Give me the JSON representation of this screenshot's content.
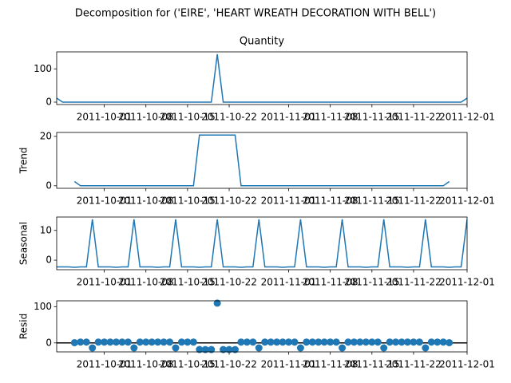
{
  "chart_data": {
    "title": "Decomposition for ('EIRE', 'HEART WREATH DECORATION WITH BELL')",
    "x": [
      "2011-09-23",
      "2011-09-24",
      "2011-09-25",
      "2011-09-26",
      "2011-09-27",
      "2011-09-28",
      "2011-09-29",
      "2011-09-30",
      "2011-10-01",
      "2011-10-02",
      "2011-10-03",
      "2011-10-04",
      "2011-10-05",
      "2011-10-06",
      "2011-10-07",
      "2011-10-08",
      "2011-10-09",
      "2011-10-10",
      "2011-10-11",
      "2011-10-12",
      "2011-10-13",
      "2011-10-14",
      "2011-10-15",
      "2011-10-16",
      "2011-10-17",
      "2011-10-18",
      "2011-10-19",
      "2011-10-20",
      "2011-10-21",
      "2011-10-22",
      "2011-10-23",
      "2011-10-24",
      "2011-10-25",
      "2011-10-26",
      "2011-10-27",
      "2011-10-28",
      "2011-10-29",
      "2011-10-30",
      "2011-10-31",
      "2011-11-01",
      "2011-11-02",
      "2011-11-03",
      "2011-11-04",
      "2011-11-05",
      "2011-11-06",
      "2011-11-07",
      "2011-11-08",
      "2011-11-09",
      "2011-11-10",
      "2011-11-11",
      "2011-11-12",
      "2011-11-13",
      "2011-11-14",
      "2011-11-15",
      "2011-11-16",
      "2011-11-17",
      "2011-11-18",
      "2011-11-19",
      "2011-11-20",
      "2011-11-21",
      "2011-11-22",
      "2011-11-23",
      "2011-11-24",
      "2011-11-25",
      "2011-11-26",
      "2011-11-27",
      "2011-11-28",
      "2011-11-29",
      "2011-11-30",
      "2011-12-01"
    ],
    "xlim": [
      "2011-09-23",
      "2011-12-01"
    ],
    "xticks": [
      "2011-10-01",
      "2011-10-08",
      "2011-10-15",
      "2011-10-22",
      "2011-11-01",
      "2011-11-08",
      "2011-11-15",
      "2011-11-22",
      "2011-12-01"
    ],
    "color": "#1f77b4",
    "panels": [
      {
        "type": "line",
        "title": "Quantity",
        "ylim": [
          -7.2,
          151.2
        ],
        "yticks": [
          0,
          100
        ],
        "values": [
          12,
          0,
          0,
          0,
          0,
          0,
          0,
          0,
          0,
          0,
          0,
          0,
          0,
          0,
          0,
          0,
          0,
          0,
          0,
          0,
          0,
          0,
          0,
          0,
          0,
          0,
          0,
          144,
          0,
          0,
          0,
          0,
          0,
          0,
          0,
          0,
          0,
          0,
          0,
          0,
          0,
          0,
          0,
          0,
          0,
          0,
          0,
          0,
          0,
          0,
          0,
          0,
          0,
          0,
          0,
          0,
          0,
          0,
          0,
          0,
          0,
          0,
          0,
          0,
          0,
          0,
          0,
          0,
          0,
          12
        ]
      },
      {
        "type": "line",
        "ylabel": "Trend",
        "ylim": [
          -1.03,
          21.6
        ],
        "yticks": [
          0,
          20
        ],
        "values": [
          null,
          null,
          null,
          1.71,
          0,
          0,
          0,
          0,
          0,
          0,
          0,
          0,
          0,
          0,
          0,
          0,
          0,
          0,
          0,
          0,
          0,
          0,
          0,
          0,
          20.57,
          20.57,
          20.57,
          20.57,
          20.57,
          20.57,
          20.57,
          0,
          0,
          0,
          0,
          0,
          0,
          0,
          0,
          0,
          0,
          0,
          0,
          0,
          0,
          0,
          0,
          0,
          0,
          0,
          0,
          0,
          0,
          0,
          0,
          0,
          0,
          0,
          0,
          0,
          0,
          0,
          0,
          0,
          0,
          0,
          1.71,
          null,
          null,
          null
        ]
      },
      {
        "type": "line",
        "ylabel": "Seasonal",
        "ylim": [
          -3.2,
          14.5
        ],
        "yticks": [
          0,
          10
        ],
        "values": [
          -2.27,
          -2.27,
          -2.27,
          -2.38,
          -2.27,
          -2.27,
          13.73,
          -2.27,
          -2.27,
          -2.27,
          -2.38,
          -2.27,
          -2.27,
          13.73,
          -2.27,
          -2.27,
          -2.27,
          -2.38,
          -2.27,
          -2.27,
          13.73,
          -2.27,
          -2.27,
          -2.27,
          -2.38,
          -2.27,
          -2.27,
          13.73,
          -2.27,
          -2.27,
          -2.27,
          -2.38,
          -2.27,
          -2.27,
          13.73,
          -2.27,
          -2.27,
          -2.27,
          -2.38,
          -2.27,
          -2.27,
          13.73,
          -2.27,
          -2.27,
          -2.27,
          -2.38,
          -2.27,
          -2.27,
          13.73,
          -2.27,
          -2.27,
          -2.27,
          -2.38,
          -2.27,
          -2.27,
          13.73,
          -2.27,
          -2.27,
          -2.27,
          -2.38,
          -2.27,
          -2.27,
          13.73,
          -2.27,
          -2.27,
          -2.27,
          -2.38,
          -2.27,
          -2.27,
          13.73
        ]
      },
      {
        "type": "scatter",
        "ylabel": "Resid",
        "ylim": [
          -24.7,
          116.1
        ],
        "yticks": [
          0,
          100
        ],
        "hline": 0,
        "values": [
          null,
          null,
          null,
          0.67,
          2.27,
          2.27,
          -13.73,
          2.27,
          2.27,
          2.27,
          2.38,
          2.27,
          2.27,
          -13.73,
          2.27,
          2.27,
          2.27,
          2.38,
          2.27,
          2.27,
          -13.73,
          2.27,
          2.27,
          2.27,
          -18.19,
          -18.3,
          -18.3,
          109.7,
          -18.3,
          -18.3,
          -18.3,
          2.38,
          2.27,
          2.27,
          -13.73,
          2.27,
          2.27,
          2.27,
          2.38,
          2.27,
          2.27,
          -13.73,
          2.27,
          2.27,
          2.27,
          2.38,
          2.27,
          2.27,
          -13.73,
          2.27,
          2.27,
          2.27,
          2.38,
          2.27,
          2.27,
          -13.73,
          2.27,
          2.27,
          2.27,
          2.38,
          2.27,
          2.27,
          -13.73,
          2.27,
          2.27,
          2.27,
          0.67,
          null,
          null,
          null
        ]
      }
    ]
  }
}
